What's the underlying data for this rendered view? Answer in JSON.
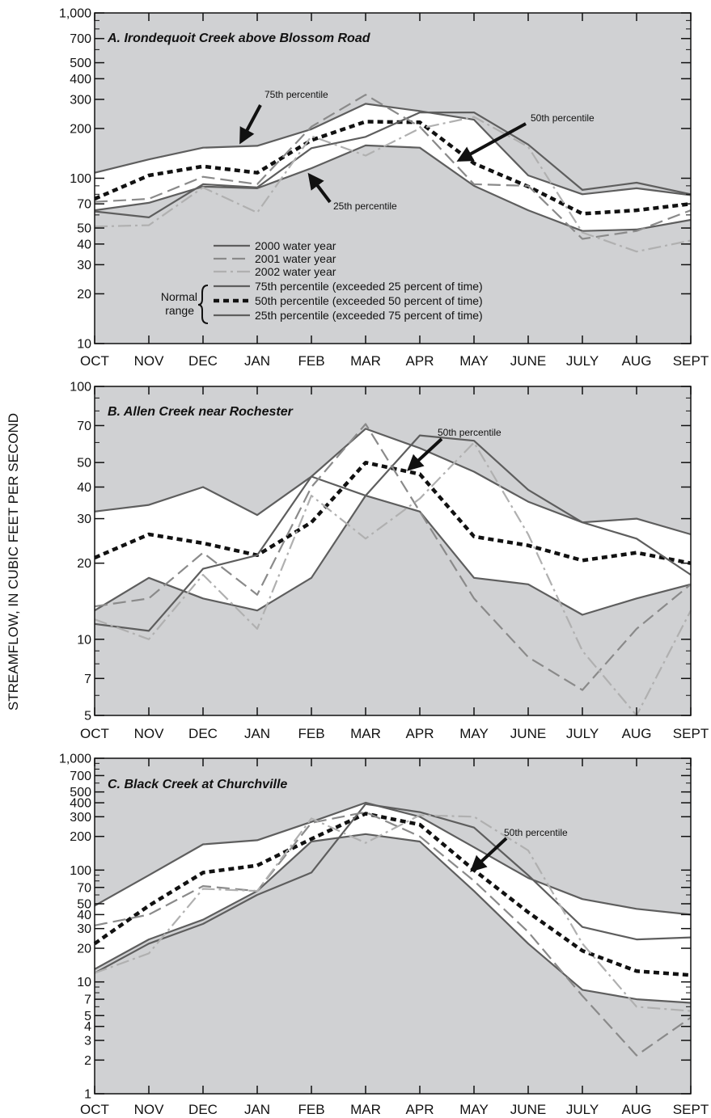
{
  "figure": {
    "ylabel": "STREAMFLOW, IN CUBIC FEET PER SECOND",
    "months": [
      "OCT",
      "NOV",
      "DEC",
      "JAN",
      "FEB",
      "MAR",
      "APR",
      "MAY",
      "JUNE",
      "JULY",
      "AUG",
      "SEPT"
    ]
  },
  "legend": {
    "group_label_line1": "Normal",
    "group_label_line2": "range",
    "items": [
      {
        "key": "wy2000",
        "label": "2000 water year"
      },
      {
        "key": "wy2001",
        "label": "2001 water year"
      },
      {
        "key": "wy2002",
        "label": "2002 water year"
      },
      {
        "key": "p75",
        "label": "75th percentile (exceeded 25 percent of time)"
      },
      {
        "key": "p50",
        "label": "50th percentile (exceeded 50 percent of time)"
      },
      {
        "key": "p25",
        "label": "25th percentile (exceeded 75 percent of time)"
      }
    ]
  },
  "colors": {
    "panel_background": "#d0d1d3",
    "normal_range_fill": "#ffffff",
    "wy2000": "#5e5e5e",
    "wy2001": "#8a8a8a",
    "wy2002": "#b0b0b0",
    "percentile": "#5e5e5e",
    "median": "#111111"
  },
  "chart_data": [
    {
      "type": "line",
      "title": "A. Irondequoit Creek above Blossom Road",
      "yscale": "log",
      "ylim": [
        10,
        1000
      ],
      "yticks": [
        10,
        20,
        30,
        40,
        50,
        70,
        100,
        200,
        300,
        400,
        500,
        700,
        1000
      ],
      "ytick_labels": [
        "10",
        "20",
        "30",
        "40",
        "50",
        "70",
        "100",
        "200",
        "300",
        "400",
        "500",
        "700",
        "1,000"
      ],
      "categories": [
        "OCT",
        "NOV",
        "DEC",
        "JAN",
        "FEB",
        "MAR",
        "APR",
        "MAY",
        "JUNE",
        "JULY",
        "AUG",
        "SEPT"
      ],
      "series": [
        {
          "key": "p75",
          "name": "75th percentile",
          "values": [
            108,
            130,
            153,
            157,
            198,
            282,
            255,
            226,
            104,
            80,
            87,
            79
          ]
        },
        {
          "key": "p50",
          "name": "50th percentile",
          "values": [
            75,
            104,
            118,
            108,
            170,
            220,
            218,
            123,
            89,
            61,
            64,
            70
          ]
        },
        {
          "key": "p25",
          "name": "25th percentile",
          "values": [
            64,
            71,
            89,
            87,
            115,
            158,
            153,
            90,
            64,
            48,
            49,
            56
          ]
        },
        {
          "key": "wy2000",
          "name": "2000 water year",
          "values": [
            63,
            58,
            92,
            88,
            152,
            178,
            250,
            250,
            160,
            85,
            94,
            80
          ]
        },
        {
          "key": "wy2001",
          "name": "2001 water year",
          "values": [
            72,
            75,
            102,
            92,
            205,
            320,
            205,
            92,
            90,
            43,
            48,
            64
          ]
        },
        {
          "key": "wy2002",
          "name": "2002 water year",
          "values": [
            51,
            52,
            88,
            62,
            180,
            137,
            200,
            235,
            155,
            47,
            36,
            42
          ]
        }
      ],
      "annotations": [
        {
          "text": "75th percentile",
          "month": 4,
          "value": 380
        },
        {
          "text": "50th percentile",
          "month": 8,
          "value": 200
        },
        {
          "text": "25th percentile",
          "month": 5,
          "value": 66
        }
      ]
    },
    {
      "type": "line",
      "title": "B. Allen Creek near Rochester",
      "yscale": "log",
      "ylim": [
        5,
        100
      ],
      "yticks": [
        5,
        7,
        10,
        20,
        30,
        40,
        50,
        70,
        100
      ],
      "ytick_labels": [
        "5",
        "7",
        "10",
        "20",
        "30",
        "40",
        "50",
        "70",
        "100"
      ],
      "categories": [
        "OCT",
        "NOV",
        "DEC",
        "JAN",
        "FEB",
        "MAR",
        "APR",
        "MAY",
        "JUNE",
        "JULY",
        "AUG",
        "SEPT"
      ],
      "series": [
        {
          "key": "p75",
          "name": "75th percentile",
          "values": [
            32,
            34,
            40,
            31,
            44,
            68,
            57,
            46,
            35,
            29,
            30,
            26
          ]
        },
        {
          "key": "p50",
          "name": "50th percentile",
          "values": [
            21,
            26,
            24,
            21.5,
            29,
            50,
            45,
            25.5,
            23.5,
            20.5,
            22,
            20
          ]
        },
        {
          "key": "p25",
          "name": "25th percentile",
          "values": [
            13,
            17.5,
            14.5,
            13,
            17.5,
            37,
            32,
            17.5,
            16.5,
            12.5,
            14.5,
            16.5
          ]
        },
        {
          "key": "wy2000",
          "name": "2000 water year",
          "values": [
            11.5,
            10.8,
            19,
            21.5,
            44,
            37,
            64,
            61,
            39,
            29,
            25,
            18
          ]
        },
        {
          "key": "wy2001",
          "name": "2001 water year",
          "values": [
            13.5,
            14.5,
            22,
            15,
            40,
            71,
            32,
            14.5,
            8.5,
            6.3,
            11,
            16.5
          ]
        },
        {
          "key": "wy2002",
          "name": "2002 water year",
          "values": [
            12,
            10,
            18,
            11,
            37,
            25,
            36,
            60,
            26,
            9,
            5,
            13
          ]
        }
      ],
      "annotations": [
        {
          "text": "50th percentile",
          "month": 6.6,
          "value": 75
        }
      ]
    },
    {
      "type": "line",
      "title": "C. Black Creek at Churchville",
      "yscale": "log",
      "ylim": [
        1,
        1000
      ],
      "yticks": [
        1,
        2,
        3,
        4,
        5,
        7,
        10,
        20,
        30,
        40,
        50,
        70,
        100,
        200,
        300,
        400,
        500,
        700,
        1000
      ],
      "ytick_labels": [
        "1",
        "2",
        "3",
        "4",
        "5",
        "7",
        "10",
        "20",
        "30",
        "40",
        "50",
        "70",
        "100",
        "200",
        "300",
        "400",
        "500",
        "700",
        "1,000"
      ],
      "categories": [
        "OCT",
        "NOV",
        "DEC",
        "JAN",
        "FEB",
        "MAR",
        "APR",
        "MAY",
        "JUNE",
        "JULY",
        "AUG",
        "SEPT"
      ],
      "series": [
        {
          "key": "p75",
          "name": "75th percentile",
          "values": [
            48,
            90,
            170,
            185,
            270,
            400,
            300,
            160,
            85,
            55,
            45,
            40
          ]
        },
        {
          "key": "p50",
          "name": "50th percentile",
          "values": [
            22,
            48,
            95,
            110,
            190,
            320,
            255,
            100,
            42,
            19,
            12.5,
            11.5
          ]
        },
        {
          "key": "p25",
          "name": "25th percentile",
          "values": [
            13,
            24,
            36,
            65,
            180,
            210,
            180,
            65,
            22,
            8.5,
            7,
            6.5
          ]
        },
        {
          "key": "wy2000",
          "name": "2000 water year",
          "values": [
            12,
            22,
            33,
            60,
            95,
            390,
            330,
            240,
            90,
            31,
            24,
            25
          ]
        },
        {
          "key": "wy2001",
          "name": "2001 water year",
          "values": [
            32,
            40,
            72,
            65,
            265,
            330,
            200,
            80,
            28,
            7.5,
            2.2,
            4.8
          ]
        },
        {
          "key": "wy2002",
          "name": "2002 water year",
          "values": [
            12,
            18,
            68,
            65,
            290,
            175,
            310,
            300,
            150,
            22,
            6,
            5.5
          ]
        }
      ],
      "annotations": [
        {
          "text": "50th percentile",
          "month": 7.2,
          "value": 190
        }
      ]
    }
  ]
}
